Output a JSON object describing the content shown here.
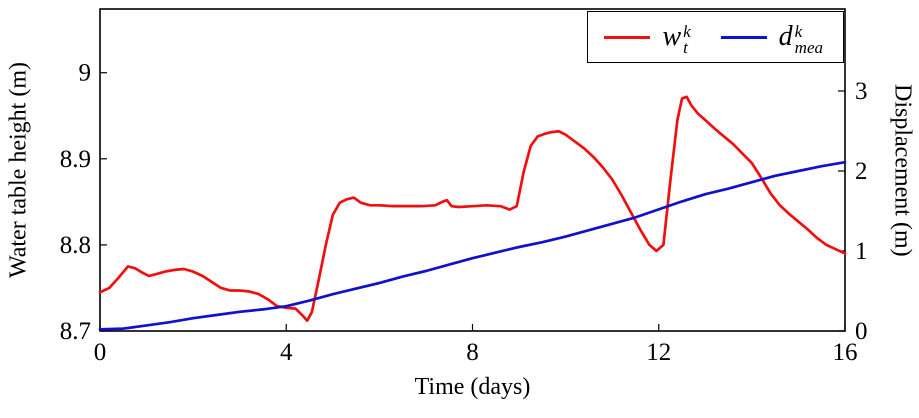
{
  "figure": {
    "background": "#ffffff",
    "axis_color": "#000000"
  },
  "chart_data": {
    "type": "line",
    "title": "",
    "xlabel": "Time (days)",
    "ylabel_left": "Water table height (m)",
    "ylabel_right": "Displacement (m)",
    "xlim": [
      0,
      16
    ],
    "left_ylim": [
      8.7,
      9.074
    ],
    "right_ylim": [
      0,
      4.025
    ],
    "x_ticks": [
      0,
      4,
      8,
      12,
      16
    ],
    "x_tick_labels": [
      "0",
      "4",
      "8",
      "12",
      "16"
    ],
    "left_y_ticks": [
      8.7,
      8.8,
      8.9,
      9.0
    ],
    "left_y_tick_labels": [
      "8.7",
      "8.8",
      "8.9",
      "9"
    ],
    "right_y_ticks": [
      0,
      1,
      2,
      3
    ],
    "right_y_tick_labels": [
      "0",
      "1",
      "2",
      "3"
    ],
    "grid": false,
    "legend_position": "top-right",
    "legend": {
      "entries": [
        {
          "series": "water-table-height",
          "base": "w",
          "sup": "k",
          "sub": "t",
          "color": "#ee1111"
        },
        {
          "series": "measured-displacement",
          "base": "d",
          "sup": "k",
          "sub": "mea",
          "color": "#1111cc"
        }
      ]
    },
    "series": [
      {
        "name": "w_t^k",
        "axis": "left",
        "color": "#ee1111",
        "x": [
          0,
          0.2,
          0.4,
          0.6,
          0.75,
          0.9,
          1.05,
          1.2,
          1.4,
          1.6,
          1.8,
          2.0,
          2.2,
          2.4,
          2.6,
          2.8,
          3.0,
          3.2,
          3.4,
          3.6,
          3.8,
          4.0,
          4.2,
          4.35,
          4.45,
          4.55,
          4.7,
          4.85,
          5.0,
          5.15,
          5.3,
          5.45,
          5.6,
          5.8,
          6.0,
          6.3,
          6.6,
          6.9,
          7.2,
          7.35,
          7.45,
          7.55,
          7.7,
          8.0,
          8.3,
          8.6,
          8.8,
          8.95,
          9.1,
          9.25,
          9.4,
          9.55,
          9.7,
          9.85,
          10.0,
          10.2,
          10.4,
          10.6,
          10.8,
          11.0,
          11.2,
          11.4,
          11.6,
          11.8,
          11.95,
          12.1,
          12.25,
          12.4,
          12.5,
          12.6,
          12.7,
          12.85,
          13.0,
          13.2,
          13.4,
          13.6,
          13.8,
          14.0,
          14.2,
          14.4,
          14.6,
          14.8,
          15.0,
          15.2,
          15.4,
          15.6,
          15.8,
          16.0
        ],
        "y": [
          8.745,
          8.75,
          8.762,
          8.775,
          8.773,
          8.768,
          8.764,
          8.766,
          8.769,
          8.771,
          8.772,
          8.769,
          8.764,
          8.757,
          8.75,
          8.747,
          8.747,
          8.746,
          8.743,
          8.737,
          8.729,
          8.727,
          8.726,
          8.718,
          8.712,
          8.722,
          8.76,
          8.8,
          8.835,
          8.849,
          8.853,
          8.855,
          8.849,
          8.846,
          8.846,
          8.845,
          8.845,
          8.845,
          8.846,
          8.85,
          8.852,
          8.845,
          8.844,
          8.845,
          8.846,
          8.845,
          8.841,
          8.845,
          8.885,
          8.915,
          8.926,
          8.929,
          8.931,
          8.932,
          8.928,
          8.92,
          8.912,
          8.902,
          8.89,
          8.876,
          8.858,
          8.838,
          8.818,
          8.8,
          8.793,
          8.8,
          8.875,
          8.945,
          8.97,
          8.972,
          8.962,
          8.952,
          8.945,
          8.935,
          8.926,
          8.917,
          8.906,
          8.895,
          8.878,
          8.86,
          8.846,
          8.836,
          8.827,
          8.818,
          8.808,
          8.8,
          8.795,
          8.79
        ]
      },
      {
        "name": "d_mea^k",
        "axis": "right",
        "color": "#1111cc",
        "x": [
          0,
          0.5,
          1,
          1.5,
          2,
          2.5,
          3,
          3.5,
          4,
          4.5,
          5,
          5.5,
          6,
          6.5,
          7,
          7.5,
          8,
          8.5,
          9,
          9.5,
          10,
          10.5,
          11,
          11.5,
          12,
          12.5,
          13,
          13.5,
          14,
          14.5,
          15,
          15.5,
          16
        ],
        "y": [
          0.02,
          0.03,
          0.07,
          0.11,
          0.16,
          0.2,
          0.24,
          0.27,
          0.31,
          0.38,
          0.46,
          0.53,
          0.6,
          0.68,
          0.75,
          0.83,
          0.91,
          0.98,
          1.05,
          1.11,
          1.18,
          1.26,
          1.34,
          1.42,
          1.52,
          1.62,
          1.71,
          1.78,
          1.86,
          1.94,
          2.0,
          2.06,
          2.11
        ]
      }
    ]
  }
}
